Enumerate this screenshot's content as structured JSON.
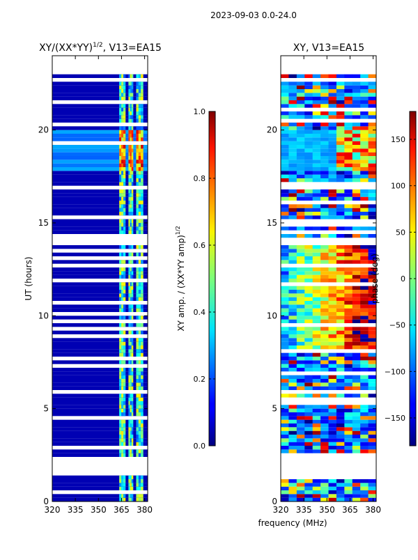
{
  "header": {
    "date_range": "2023-09-03 0.0-24.0"
  },
  "chart_data": [
    {
      "type": "heatmap",
      "title": "XY/(XX*YY)",
      "title_exp": "1/2",
      "title_suffix": ", V13=EA15",
      "xlabel": "",
      "ylabel": "UT (hours)",
      "xlim": [
        320,
        382
      ],
      "ylim": [
        0,
        24
      ],
      "xticks": [
        320,
        335,
        350,
        365,
        380
      ],
      "yticks": [
        0,
        5,
        10,
        15,
        20
      ],
      "colorbar": {
        "label": "XY amp. / (XX*YY amp)",
        "label_exp": "1/2",
        "range": [
          0.0,
          1.0
        ],
        "ticks": [
          "0.0",
          "0.2",
          "0.4",
          "0.6",
          "0.8",
          "1.0"
        ],
        "colormap": "jet"
      },
      "valid_bands_mhz": [
        [
          363.5,
          367.5
        ],
        [
          369.5,
          372.5
        ],
        [
          374.5,
          379
        ]
      ],
      "bright_band_hours": [
        17.7,
        19.8
      ],
      "data_gaps_hours": [
        [
          1.4,
          2.2
        ],
        [
          5.8,
          6.0
        ],
        [
          13.7,
          14.0
        ],
        [
          22.9,
          24.0
        ]
      ],
      "typical_value_off_band": 0.0,
      "typical_value_in_band": 0.45
    },
    {
      "type": "heatmap",
      "title": "XY, V13=EA15",
      "xlabel": "frequency (MHz)",
      "ylabel": "",
      "xlim": [
        320,
        382
      ],
      "ylim": [
        0,
        24
      ],
      "xticks": [
        320,
        335,
        350,
        365,
        380
      ],
      "yticks": [
        0,
        5,
        10,
        15,
        20
      ],
      "colorbar": {
        "label": "phase (deg)",
        "range": [
          -180,
          180
        ],
        "ticks": [
          "−150",
          "−100",
          "−50",
          "0",
          "50",
          "100",
          "150"
        ],
        "colormap": "jet"
      },
      "data_gaps_hours": [
        [
          1.4,
          2.2
        ],
        [
          5.8,
          6.0
        ],
        [
          13.7,
          14.0
        ],
        [
          22.9,
          24.0
        ]
      ]
    }
  ],
  "colors": {
    "frame": "#000000",
    "gap": "#ffffff"
  }
}
